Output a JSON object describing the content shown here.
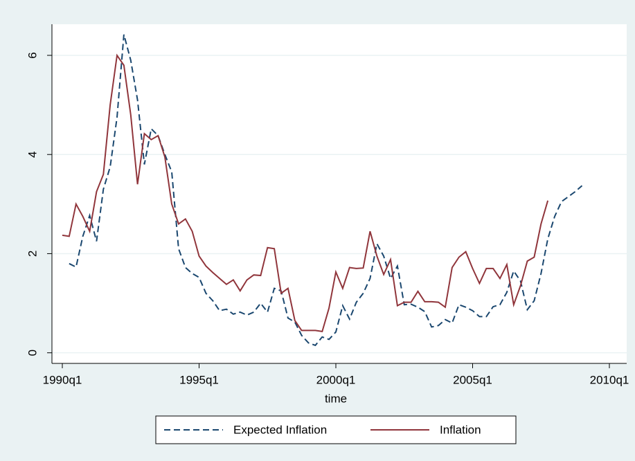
{
  "chart_data": {
    "type": "line",
    "x": [
      "1990q1",
      "1990q2",
      "1990q3",
      "1990q4",
      "1991q1",
      "1991q2",
      "1991q3",
      "1991q4",
      "1992q1",
      "1992q2",
      "1992q3",
      "1992q4",
      "1993q1",
      "1993q2",
      "1993q3",
      "1993q4",
      "1994q1",
      "1994q2",
      "1994q3",
      "1994q4",
      "1995q1",
      "1995q2",
      "1995q3",
      "1995q4",
      "1996q1",
      "1996q2",
      "1996q3",
      "1996q4",
      "1997q1",
      "1997q2",
      "1997q3",
      "1997q4",
      "1998q1",
      "1998q2",
      "1998q3",
      "1998q4",
      "1999q1",
      "1999q2",
      "1999q3",
      "1999q4",
      "2000q1",
      "2000q2",
      "2000q3",
      "2000q4",
      "2001q1",
      "2001q2",
      "2001q3",
      "2001q4",
      "2002q1",
      "2002q2",
      "2002q3",
      "2002q4",
      "2003q1",
      "2003q2",
      "2003q3",
      "2003q4",
      "2004q1",
      "2004q2",
      "2004q3",
      "2004q4",
      "2005q1",
      "2005q2",
      "2005q3",
      "2005q4",
      "2006q1",
      "2006q2",
      "2006q3",
      "2006q4",
      "2007q1",
      "2007q2",
      "2007q3",
      "2007q4",
      "2008q1",
      "2008q2",
      "2008q3",
      "2008q4",
      "2009q1"
    ],
    "series": [
      {
        "name": "Expected Inflation",
        "color": "#1a476f",
        "dash": true,
        "values": [
          null,
          1.8,
          1.73,
          2.35,
          2.77,
          2.25,
          3.3,
          3.75,
          4.75,
          6.42,
          5.9,
          5.1,
          3.8,
          4.52,
          4.38,
          4.0,
          3.65,
          2.1,
          1.72,
          1.6,
          1.52,
          1.2,
          1.05,
          0.85,
          0.88,
          0.78,
          0.82,
          0.76,
          0.82,
          1.0,
          0.82,
          1.3,
          1.25,
          0.7,
          0.62,
          0.35,
          0.2,
          0.15,
          0.32,
          0.27,
          0.42,
          0.95,
          0.68,
          1.02,
          1.2,
          1.5,
          2.2,
          1.95,
          1.5,
          1.75,
          0.97,
          0.98,
          0.92,
          0.83,
          0.52,
          0.55,
          0.67,
          0.6,
          0.97,
          0.92,
          0.85,
          0.73,
          0.73,
          0.93,
          0.97,
          1.22,
          1.65,
          1.45,
          0.87,
          1.05,
          1.6,
          2.3,
          2.75,
          3.05,
          3.15,
          3.25,
          3.37
        ]
      },
      {
        "name": "Inflation",
        "color": "#90353b",
        "dash": false,
        "values": [
          2.37,
          2.35,
          3.0,
          2.75,
          2.45,
          3.25,
          3.6,
          5.0,
          6.0,
          5.8,
          4.8,
          3.4,
          4.42,
          4.3,
          4.38,
          3.95,
          3.0,
          2.6,
          2.7,
          2.45,
          1.95,
          1.75,
          1.62,
          1.5,
          1.38,
          1.47,
          1.25,
          1.47,
          1.57,
          1.56,
          2.12,
          2.1,
          1.2,
          1.3,
          0.65,
          0.45,
          0.45,
          0.45,
          0.43,
          0.9,
          1.63,
          1.3,
          1.72,
          1.7,
          1.71,
          2.45,
          1.95,
          1.58,
          1.88,
          0.95,
          1.02,
          1.02,
          1.24,
          1.03,
          1.03,
          1.02,
          0.92,
          1.72,
          1.93,
          2.04,
          1.7,
          1.4,
          1.7,
          1.7,
          1.5,
          1.78,
          0.97,
          1.35,
          1.85,
          1.93,
          2.6,
          3.07,
          null,
          null,
          null,
          null,
          null
        ]
      }
    ],
    "xlabel": "time",
    "xlim": [
      "1990q1",
      "2010q1"
    ],
    "xticks": [
      "1990q1",
      "1995q1",
      "2000q1",
      "2005q1",
      "2010q1"
    ],
    "ylim": [
      -0.2,
      6.6
    ],
    "yticks": [
      0,
      2,
      4,
      6
    ],
    "grid": true
  }
}
